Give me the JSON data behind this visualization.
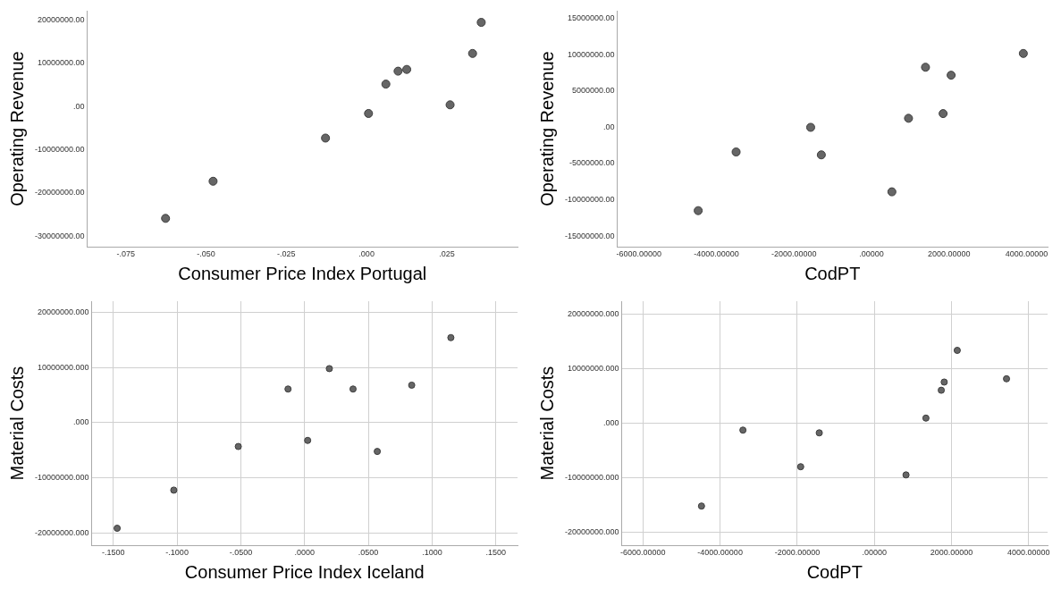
{
  "chart_data": [
    {
      "type": "scatter",
      "xlabel": "Consumer Price Index Portugal",
      "ylabel": "Operating Revenue",
      "color": "#666666",
      "marker": "circle",
      "grid": false,
      "x": [
        -0.0626,
        -0.0478,
        -0.0128,
        0.0006,
        0.006,
        0.0098,
        0.0125,
        0.026,
        0.033,
        0.0357
      ],
      "values": [
        -25900000,
        -17300000,
        -7300000,
        -1600000,
        5200000,
        8200000,
        8600000,
        400000,
        12300000,
        19500000
      ],
      "xlim": [
        -0.087,
        0.047
      ],
      "ylim": [
        -32500000,
        22200000
      ],
      "xticks": [
        {
          "value": -0.075,
          "label": "-.075"
        },
        {
          "value": -0.05,
          "label": "-.050"
        },
        {
          "value": -0.025,
          "label": "-.025"
        },
        {
          "value": 0,
          "label": ".000"
        },
        {
          "value": 0.025,
          "label": ".025"
        }
      ],
      "yticks": [
        {
          "value": -30000000,
          "label": "-30000000.00"
        },
        {
          "value": -20000000,
          "label": "-20000000.00"
        },
        {
          "value": -10000000,
          "label": "-10000000.00"
        },
        {
          "value": 0,
          "label": ".00"
        },
        {
          "value": 10000000,
          "label": "10000000.00"
        },
        {
          "value": 20000000,
          "label": "20000000.00"
        }
      ]
    },
    {
      "type": "scatter",
      "xlabel": "CodPT",
      "ylabel": "Operating Revenue",
      "color": "#666666",
      "marker": "circle",
      "grid": false,
      "x": [
        -4472,
        -3494,
        -1571,
        -1296,
        524,
        953,
        1391,
        1845,
        2052,
        3914
      ],
      "values": [
        -11500000,
        -3400000,
        0,
        -3800000,
        -8900000,
        1250000,
        8300000,
        1900000,
        7200000,
        10200000
      ],
      "xlim": [
        -6560,
        4540
      ],
      "ylim": [
        -16500000,
        16100000
      ],
      "xticks": [
        {
          "value": -6000,
          "label": "-6000.00000"
        },
        {
          "value": -4000,
          "label": "-4000.00000"
        },
        {
          "value": -2000,
          "label": "-2000.00000"
        },
        {
          "value": 0,
          "label": ".00000"
        },
        {
          "value": 2000,
          "label": "2000.00000"
        },
        {
          "value": 4000,
          "label": "4000.00000"
        }
      ],
      "yticks": [
        {
          "value": -15000000,
          "label": "-15000000.00"
        },
        {
          "value": -10000000,
          "label": "-10000000.00"
        },
        {
          "value": -5000000,
          "label": "-5000000.00"
        },
        {
          "value": 0,
          "label": ".00"
        },
        {
          "value": 5000000,
          "label": "5000000.00"
        },
        {
          "value": 10000000,
          "label": "10000000.00"
        },
        {
          "value": 15000000,
          "label": "15000000.00"
        }
      ]
    },
    {
      "type": "scatter",
      "xlabel": "Consumer Price Index Iceland",
      "ylabel": "Material Costs",
      "color": "#666666",
      "marker": "circle",
      "grid": true,
      "x": [
        -0.147,
        -0.1026,
        -0.052,
        -0.013,
        0.0024,
        0.0194,
        0.038,
        0.057,
        0.084,
        0.1147
      ],
      "values": [
        -19100000,
        -12200000,
        -4300000,
        6100000,
        -3200000,
        9800000,
        6100000,
        -5200000,
        6800000,
        15400000
      ],
      "xlim": [
        -0.167,
        0.167
      ],
      "ylim": [
        -22200000,
        22000000
      ],
      "xticks": [
        {
          "value": -0.15,
          "label": "-.1500"
        },
        {
          "value": -0.1,
          "label": "-.1000"
        },
        {
          "value": -0.05,
          "label": "-.0500"
        },
        {
          "value": 0,
          "label": ".0000"
        },
        {
          "value": 0.05,
          "label": ".0500"
        },
        {
          "value": 0.1,
          "label": ".1000"
        },
        {
          "value": 0.15,
          "label": ".1500"
        }
      ],
      "yticks": [
        {
          "value": -20000000,
          "label": "-20000000.000"
        },
        {
          "value": -10000000,
          "label": "-10000000.000"
        },
        {
          "value": 0,
          "label": ".000"
        },
        {
          "value": 10000000,
          "label": "10000000.000"
        },
        {
          "value": 20000000,
          "label": "20000000.000"
        }
      ]
    },
    {
      "type": "scatter",
      "xlabel": "CodPT",
      "ylabel": "Material Costs",
      "color": "#666666",
      "marker": "circle",
      "grid": true,
      "x": [
        -4482,
        -3408,
        -1911,
        -1429,
        820,
        1336,
        1734,
        1810,
        2148,
        3425
      ],
      "values": [
        -15200000,
        -1300000,
        -8000000,
        -1800000,
        -9500000,
        900000,
        6000000,
        7500000,
        13300000,
        8100000
      ],
      "xlim": [
        -6550,
        4490
      ],
      "ylim": [
        -22400000,
        22300000
      ],
      "xticks": [
        {
          "value": -6000,
          "label": "-6000.00000"
        },
        {
          "value": -4000,
          "label": "-4000.00000"
        },
        {
          "value": -2000,
          "label": "-2000.00000"
        },
        {
          "value": 0,
          "label": ".00000"
        },
        {
          "value": 2000,
          "label": "2000.00000"
        },
        {
          "value": 4000,
          "label": "4000.00000"
        }
      ],
      "yticks": [
        {
          "value": -20000000,
          "label": "-20000000.000"
        },
        {
          "value": -10000000,
          "label": "-10000000.000"
        },
        {
          "value": 0,
          "label": ".000"
        },
        {
          "value": 10000000,
          "label": "10000000.000"
        },
        {
          "value": 20000000,
          "label": "20000000.000"
        }
      ]
    }
  ]
}
